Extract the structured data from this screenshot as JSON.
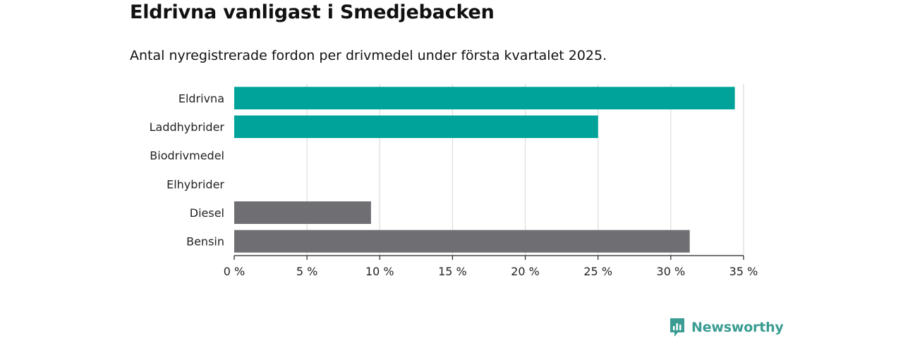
{
  "chart_data": {
    "type": "bar",
    "orientation": "horizontal",
    "title": "Eldrivna vanligast i Smedjebacken",
    "subtitle": "Antal nyregistrerade fordon per drivmedel under första kvartalet 2025.",
    "categories": [
      "Eldrivna",
      "Laddhybrider",
      "Biodrivmedel",
      "Elhybrider",
      "Diesel",
      "Bensin"
    ],
    "values": [
      34.4,
      25.0,
      0,
      0,
      9.4,
      31.3
    ],
    "unit": "%",
    "bar_colors": [
      "#00a399",
      "#00a399",
      "#00a399",
      "#00a399",
      "#6e6e73",
      "#6e6e73"
    ],
    "xlim": [
      0,
      35
    ],
    "xticks": [
      0,
      5,
      10,
      15,
      20,
      25,
      30,
      35
    ],
    "xtick_labels": [
      "0 %",
      "5 %",
      "10 %",
      "15 %",
      "20 %",
      "25 %",
      "30 %",
      "35 %"
    ],
    "grid": true
  },
  "brand": {
    "name": "Newsworthy",
    "color": "#3a9c92",
    "icon": "newsworthy-logo-icon"
  }
}
